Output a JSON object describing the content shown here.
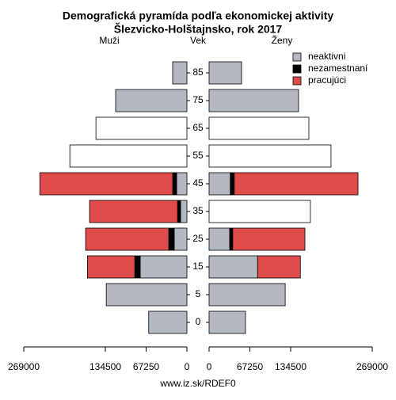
{
  "chart_data": {
    "type": "pyramid",
    "title": "Demografická pyramída podľa ekonomickej aktivity",
    "subtitle": "Šlezvicko-Holštajnsko, rok 2017",
    "category_label": "Vek",
    "categories": [
      "0",
      "5",
      "15",
      "25",
      "35",
      "45",
      "55",
      "65",
      "75",
      "85"
    ],
    "xlim": [
      0,
      269000
    ],
    "xticks": [
      0,
      67250,
      134500,
      269000
    ],
    "legend": "top-right",
    "source": "www.iz.sk/RDEF0",
    "panels": [
      {
        "label": "Muži",
        "series": [
          {
            "name": "neaktivni",
            "color": "#b4b9c1",
            "values": [
              63000,
              133000,
              77000,
              21000,
              10500,
              17000,
              null,
              null,
              117500,
              23500
            ]
          },
          {
            "name": "nezamestnaní",
            "color": "#000000",
            "values": [
              null,
              null,
              9000,
              9000,
              5000,
              6500,
              null,
              null,
              null,
              null
            ]
          },
          {
            "name": "pracujúci",
            "color": "#e04b4b",
            "values": [
              null,
              null,
              78000,
              137000,
              145000,
              219000,
              null,
              null,
              null,
              null
            ]
          },
          {
            "color": "#ffffff",
            "values": [
              null,
              null,
              null,
              null,
              null,
              null,
              193000,
              150000,
              null,
              null
            ]
          }
        ]
      },
      {
        "label": "Ženy",
        "series": [
          {
            "name": "neaktivni",
            "color": "#b4b9c1",
            "values": [
              60000,
              125500,
              80000,
              34000,
              null,
              35000,
              null,
              null,
              147500,
              53500
            ]
          },
          {
            "name": "nezamestnaní",
            "color": "#000000",
            "values": [
              null,
              null,
              null,
              5000,
              null,
              6500,
              null,
              null,
              null,
              null
            ]
          },
          {
            "name": "pracujúci",
            "color": "#e04b4b",
            "values": [
              null,
              null,
              70500,
              119000,
              null,
              204000,
              null,
              null,
              null,
              null
            ]
          },
          {
            "color": "#ffffff",
            "values": [
              null,
              null,
              null,
              null,
              167000,
              null,
              201000,
              164500,
              null,
              null
            ]
          }
        ]
      }
    ]
  }
}
